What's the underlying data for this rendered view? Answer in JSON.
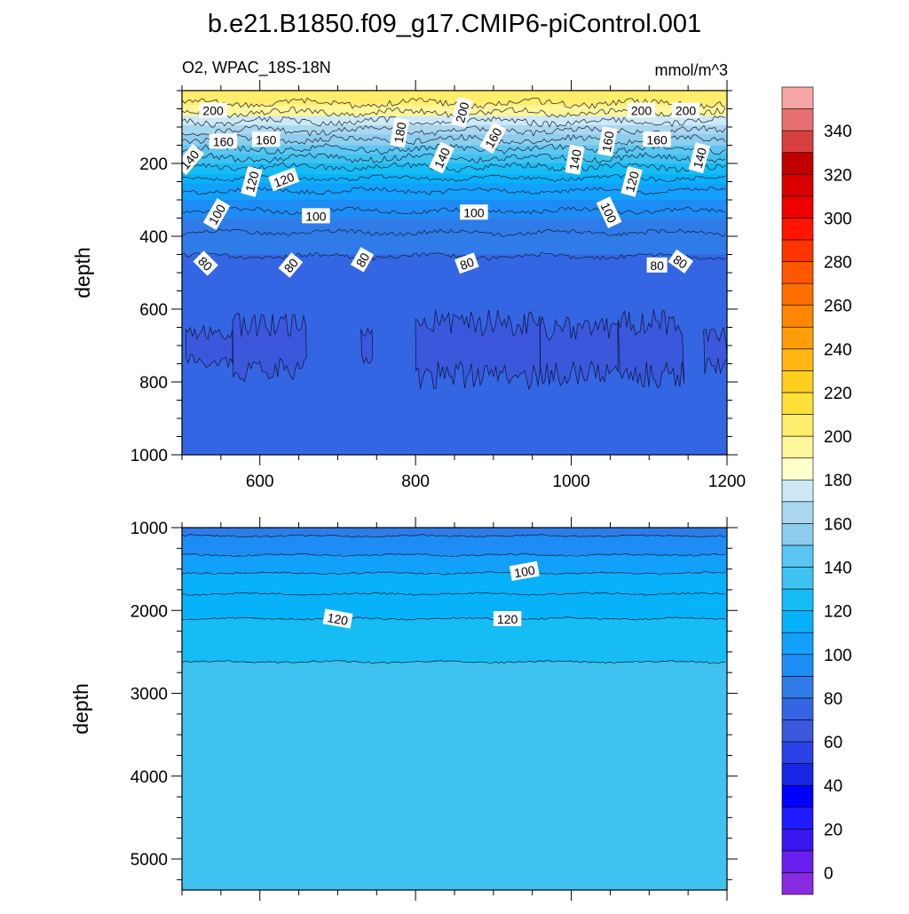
{
  "title": "b.e21.B1850.f09_g17.CMIP6-piControl.001",
  "chart_data": {
    "type": "heatmap",
    "title": "b.e21.B1850.f09_g17.CMIP6-piControl.001",
    "colorbar": {
      "levels": [
        0,
        10,
        20,
        30,
        40,
        50,
        60,
        70,
        80,
        90,
        100,
        110,
        120,
        130,
        140,
        150,
        160,
        170,
        180,
        190,
        200,
        210,
        220,
        230,
        240,
        250,
        260,
        270,
        280,
        290,
        300,
        310,
        320,
        330,
        340,
        350
      ],
      "colors": [
        "#8a2be2",
        "#6a1fef",
        "#3a16ee",
        "#1f1aff",
        "#0000ff",
        "#1826e6",
        "#2b43e6",
        "#3b58dc",
        "#3466e4",
        "#2f7ce8",
        "#1e8cf5",
        "#12a0fb",
        "#08b2fa",
        "#16bdf5",
        "#3fc2f0",
        "#5cc6f2",
        "#8ecdee",
        "#aad7ef",
        "#cde9f5",
        "#ffffcc",
        "#fff59a",
        "#ffed6b",
        "#ffe03a",
        "#ffcf20",
        "#ffb612",
        "#ff9e0a",
        "#ff8600",
        "#ff6e00",
        "#ff5600",
        "#ff3500",
        "#ff1500",
        "#ee0000",
        "#d80000",
        "#c00000",
        "#d84040",
        "#e87070",
        "#f6a6a6"
      ],
      "tick_labels": [
        "0",
        "20",
        "40",
        "60",
        "80",
        "100",
        "120",
        "140",
        "160",
        "180",
        "200",
        "220",
        "240",
        "260",
        "280",
        "300",
        "320",
        "340"
      ]
    },
    "panels": [
      {
        "name": "upper",
        "left_label": "O2, WPAC_18S-18N",
        "right_label": "mmol/m^3",
        "ylabel": "depth",
        "x_range": [
          500,
          1200
        ],
        "y_range": [
          0,
          1000
        ],
        "x_ticks": [
          "600",
          "800",
          "1000",
          "1200"
        ],
        "x_tick_values": [
          600,
          800,
          1000,
          1200
        ],
        "y_ticks": [
          "200",
          "400",
          "600",
          "800",
          "1000"
        ],
        "y_tick_values": [
          200,
          400,
          600,
          800,
          1000
        ],
        "bands": [
          {
            "from": 0,
            "to": 40,
            "value": 205
          },
          {
            "from": 40,
            "to": 70,
            "value": 195
          },
          {
            "from": 70,
            "to": 95,
            "value": 175
          },
          {
            "from": 95,
            "to": 120,
            "value": 165
          },
          {
            "from": 120,
            "to": 150,
            "value": 155
          },
          {
            "from": 150,
            "to": 175,
            "value": 145
          },
          {
            "from": 175,
            "to": 200,
            "value": 135
          },
          {
            "from": 200,
            "to": 230,
            "value": 125
          },
          {
            "from": 230,
            "to": 255,
            "value": 115
          },
          {
            "from": 255,
            "to": 300,
            "value": 105
          },
          {
            "from": 300,
            "to": 350,
            "value": 95
          },
          {
            "from": 350,
            "to": 450,
            "value": 85
          },
          {
            "from": 450,
            "to": 1000,
            "value": 75
          }
        ],
        "contours": [
          35,
          60,
          85,
          110,
          135,
          160,
          185,
          210,
          240,
          275,
          330,
          390,
          455
        ],
        "patches": [
          {
            "x1": 505,
            "x2": 565,
            "y1": 640,
            "y2": 770,
            "value": 65
          },
          {
            "x1": 565,
            "x2": 660,
            "y1": 610,
            "y2": 800,
            "value": 65
          },
          {
            "x1": 730,
            "x2": 745,
            "y1": 640,
            "y2": 760,
            "value": 65
          },
          {
            "x1": 800,
            "x2": 960,
            "y1": 600,
            "y2": 820,
            "value": 65
          },
          {
            "x1": 960,
            "x2": 1060,
            "y1": 620,
            "y2": 810,
            "value": 65
          },
          {
            "x1": 1060,
            "x2": 1145,
            "y1": 600,
            "y2": 820,
            "value": 65
          },
          {
            "x1": 1170,
            "x2": 1200,
            "y1": 640,
            "y2": 780,
            "value": 65
          }
        ],
        "contour_labels": [
          {
            "text": "200",
            "x": 540,
            "y": 55,
            "rotate": 0
          },
          {
            "text": "200",
            "x": 860,
            "y": 60,
            "rotate": -75
          },
          {
            "text": "200",
            "x": 1090,
            "y": 55,
            "rotate": 0
          },
          {
            "text": "200",
            "x": 1147,
            "y": 55,
            "rotate": 0
          },
          {
            "text": "180",
            "x": 780,
            "y": 115,
            "rotate": -80
          },
          {
            "text": "160",
            "x": 553,
            "y": 140,
            "rotate": 0
          },
          {
            "text": "160",
            "x": 608,
            "y": 135,
            "rotate": 0
          },
          {
            "text": "160",
            "x": 900,
            "y": 130,
            "rotate": -60
          },
          {
            "text": "160",
            "x": 1047,
            "y": 140,
            "rotate": -80
          },
          {
            "text": "160",
            "x": 1110,
            "y": 135,
            "rotate": 0
          },
          {
            "text": "140",
            "x": 510,
            "y": 190,
            "rotate": -50
          },
          {
            "text": "140",
            "x": 834,
            "y": 185,
            "rotate": -65
          },
          {
            "text": "140",
            "x": 1005,
            "y": 190,
            "rotate": -80
          },
          {
            "text": "140",
            "x": 1165,
            "y": 185,
            "rotate": -75
          },
          {
            "text": "120",
            "x": 590,
            "y": 250,
            "rotate": -75
          },
          {
            "text": "120",
            "x": 631,
            "y": 245,
            "rotate": -20
          },
          {
            "text": "120",
            "x": 1078,
            "y": 250,
            "rotate": -75
          },
          {
            "text": "100",
            "x": 545,
            "y": 340,
            "rotate": -60
          },
          {
            "text": "100",
            "x": 672,
            "y": 345,
            "rotate": 0
          },
          {
            "text": "100",
            "x": 875,
            "y": 335,
            "rotate": 0
          },
          {
            "text": "100",
            "x": 1048,
            "y": 335,
            "rotate": 65
          },
          {
            "text": "80",
            "x": 530,
            "y": 475,
            "rotate": 45
          },
          {
            "text": "80",
            "x": 640,
            "y": 480,
            "rotate": -50
          },
          {
            "text": "80",
            "x": 732,
            "y": 465,
            "rotate": -60
          },
          {
            "text": "80",
            "x": 866,
            "y": 475,
            "rotate": -20
          },
          {
            "text": "80",
            "x": 1110,
            "y": 480,
            "rotate": 0
          },
          {
            "text": "80",
            "x": 1140,
            "y": 470,
            "rotate": 35
          }
        ]
      },
      {
        "name": "lower",
        "left_label": "",
        "right_label": "",
        "ylabel": "depth",
        "x_range": [
          500,
          1200
        ],
        "y_range": [
          1000,
          5375
        ],
        "x_ticks": [],
        "x_tick_values": [
          600,
          800,
          1000,
          1200
        ],
        "y_ticks": [
          "1000",
          "2000",
          "3000",
          "4000",
          "5000"
        ],
        "y_tick_values": [
          1000,
          2000,
          3000,
          4000,
          5000
        ],
        "bands": [
          {
            "from": 1000,
            "to": 1100,
            "value": 85
          },
          {
            "from": 1100,
            "to": 1330,
            "value": 95
          },
          {
            "from": 1330,
            "to": 1550,
            "value": 105
          },
          {
            "from": 1550,
            "to": 1800,
            "value": 112
          },
          {
            "from": 1800,
            "to": 2100,
            "value": 118
          },
          {
            "from": 2100,
            "to": 2620,
            "value": 125
          },
          {
            "from": 2620,
            "to": 5375,
            "value": 135
          }
        ],
        "contours": [
          1100,
          1330,
          1550,
          1800,
          2100,
          2620
        ],
        "patches": [],
        "contour_labels": [
          {
            "text": "100",
            "x": 940,
            "y": 1530,
            "rotate": -10
          },
          {
            "text": "120",
            "x": 700,
            "y": 2105,
            "rotate": 10
          },
          {
            "text": "120",
            "x": 918,
            "y": 2105,
            "rotate": 0
          }
        ]
      }
    ]
  }
}
